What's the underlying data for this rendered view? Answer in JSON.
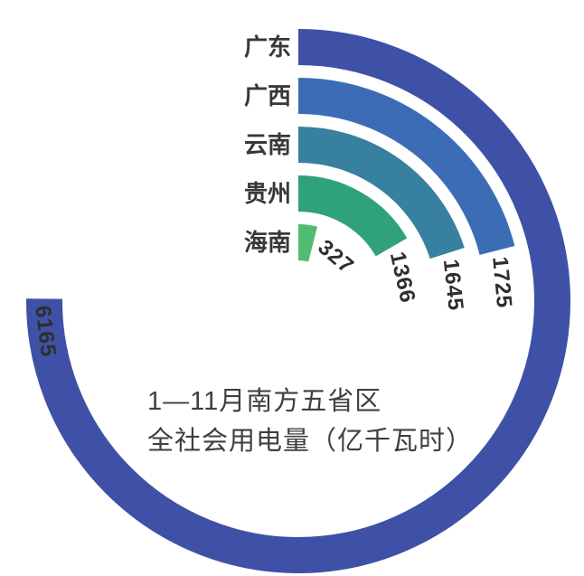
{
  "page": {
    "background": "#ffffff"
  },
  "chart_data": {
    "type": "bar",
    "variant": "radial-polar-bars",
    "title": "1—11月南方五省区全社会用电量（亿千瓦时）",
    "title_line1": "1—11月南方五省区",
    "title_line2": "全社会用电量（亿千瓦时）",
    "unit": "亿千瓦时",
    "categories": [
      "广东",
      "广西",
      "云南",
      "贵州",
      "海南"
    ],
    "values": [
      6165,
      1725,
      1645,
      1366,
      327
    ],
    "colors": [
      "#3E51A7",
      "#3C6CB5",
      "#38809F",
      "#2FA17D",
      "#52BC71"
    ],
    "angle_start_deg": 0,
    "direction": "clockwise",
    "angle_scale_deg_per_unit": 0.04388,
    "max_value": 6165,
    "grid": "off",
    "legend": "none",
    "label_color": "#383838",
    "value_label_color": "#2E2E2E",
    "title_color": "#3F3F3F"
  }
}
